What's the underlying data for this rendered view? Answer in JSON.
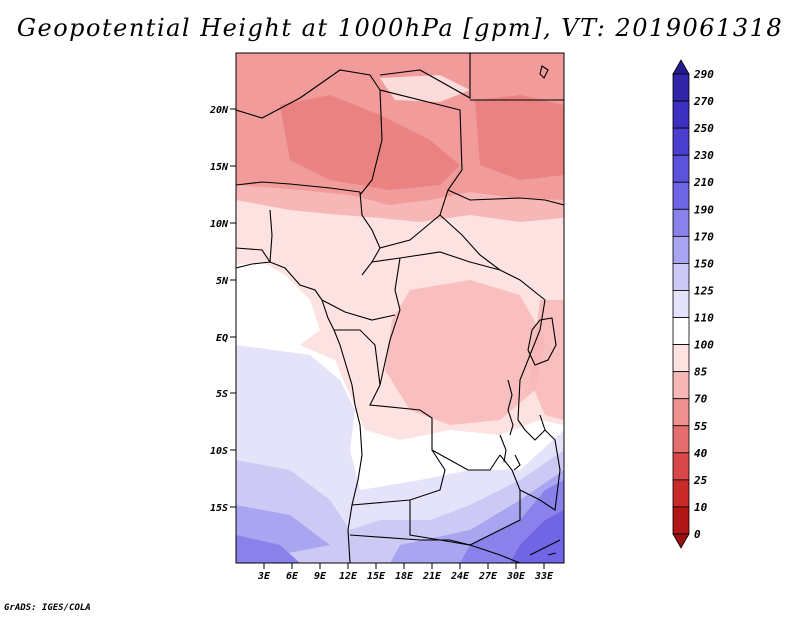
{
  "title": "Geopotential Height at 1000hPa [gpm], VT: 2019061318",
  "footer": "GrADS: IGES/COLA",
  "map": {
    "lat_labels": [
      "20N",
      "15N",
      "10N",
      "5N",
      "EQ",
      "5S",
      "10S",
      "15S"
    ],
    "lon_labels": [
      "3E",
      "6E",
      "9E",
      "12E",
      "15E",
      "18E",
      "21E",
      "24E",
      "27E",
      "30E",
      "33E"
    ]
  },
  "colorbar": {
    "levels": [
      "290",
      "270",
      "250",
      "230",
      "210",
      "190",
      "170",
      "150",
      "125",
      "110",
      "100",
      "85",
      "70",
      "55",
      "40",
      "25",
      "10",
      "0"
    ],
    "colors": [
      "#271c8f",
      "#3124a8",
      "#3d2fbf",
      "#4c3fcf",
      "#5c52dc",
      "#7065e4",
      "#8a82ea",
      "#aaa5f0",
      "#cccaf5",
      "#e4e3fa",
      "#ffffff",
      "#fde2e2",
      "#f8b7b7",
      "#ef9191",
      "#e46d6d",
      "#d84848",
      "#c82a2a",
      "#b01616",
      "#991111"
    ]
  }
}
